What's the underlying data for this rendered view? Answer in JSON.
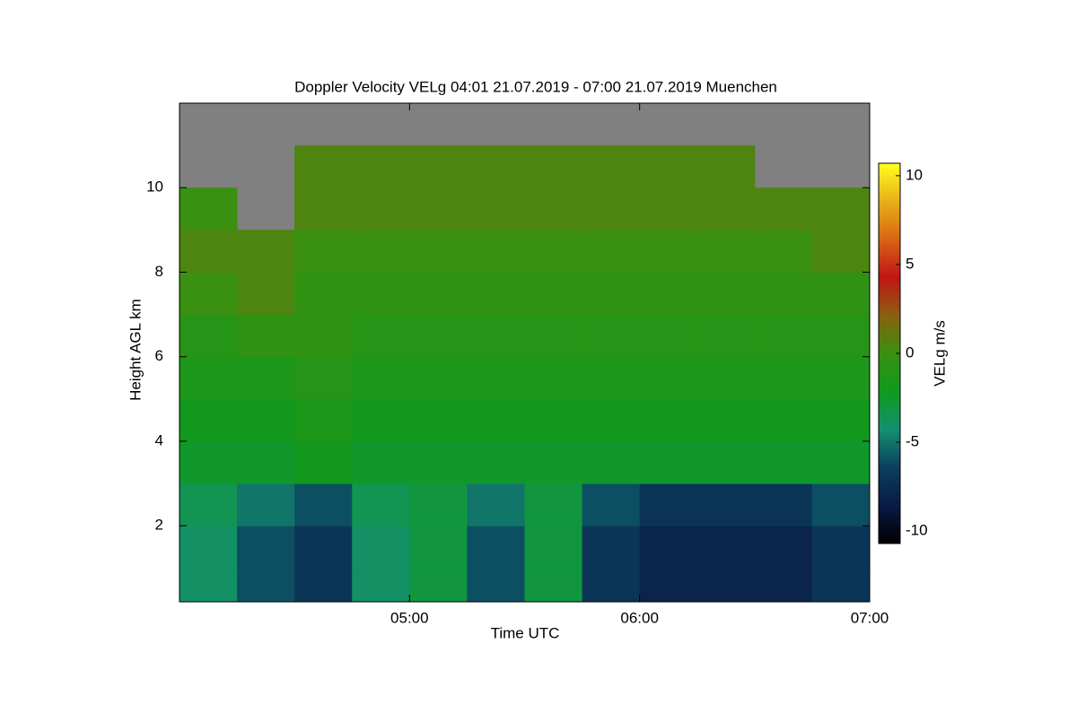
{
  "chart_data": {
    "type": "heatmap",
    "title": "Doppler Velocity VELg   04:01 21.07.2019 - 07:00 21.07.2019 Muenchen",
    "x_label": "Time UTC",
    "y_label": "Height AGL km",
    "colorbar_label": "VELg m/s",
    "x": [
      4.125,
      4.375,
      4.625,
      4.875,
      5.125,
      5.375,
      5.625,
      5.875,
      6.125,
      6.375,
      6.625,
      6.875
    ],
    "y": [
      0.5,
      1.5,
      2.5,
      3.5,
      4.5,
      5.5,
      6.5,
      7.5,
      8.5,
      9.5,
      10.5,
      11.5
    ],
    "z": [
      [
        -4,
        -6,
        -7,
        -4,
        -3,
        -6,
        -3,
        -7,
        -8,
        -8,
        -8,
        -7
      ],
      [
        -4,
        -6,
        -7,
        -4,
        -3,
        -6,
        -3,
        -7,
        -8,
        -8,
        -8,
        -7
      ],
      [
        -3.5,
        -5,
        -6,
        -3.5,
        -3,
        -5,
        -3,
        -6,
        -7,
        -7,
        -7,
        -6
      ],
      [
        -2.5,
        -2.5,
        -2,
        -2.5,
        -2.5,
        -2.5,
        -2.5,
        -2.5,
        -2.5,
        -2.5,
        -2.5,
        -2.5
      ],
      [
        -2,
        -2,
        -1.5,
        -2,
        -2,
        -2,
        -2,
        -2,
        -2,
        -2,
        -2,
        -2
      ],
      [
        -1.5,
        -1.5,
        -1,
        -1.5,
        -1.5,
        -1.5,
        -1.5,
        -1.5,
        -1.5,
        -1.5,
        -1.5,
        -1.5
      ],
      [
        -1,
        -0.5,
        -0.5,
        -1,
        -1,
        -1,
        -1,
        -1,
        -1,
        -1,
        -1,
        -1
      ],
      [
        0,
        0.5,
        -0.5,
        -0.5,
        -0.5,
        -0.5,
        -0.5,
        -0.5,
        -0.5,
        -0.5,
        -0.5,
        -0.5
      ],
      [
        0.5,
        0.5,
        0,
        0,
        0,
        0,
        0,
        0,
        0,
        0,
        0,
        0.5
      ],
      [
        0,
        null,
        0.5,
        0.5,
        0.5,
        0.5,
        0.5,
        0.5,
        0.5,
        0.5,
        0.5,
        0.5
      ],
      [
        null,
        null,
        0.5,
        0.5,
        0.5,
        0.5,
        0.5,
        0.5,
        0.5,
        0.5,
        null,
        null
      ],
      [
        null,
        null,
        null,
        null,
        null,
        null,
        null,
        null,
        null,
        null,
        null,
        null
      ]
    ],
    "xlim": [
      4,
      7
    ],
    "xticks": [
      {
        "value": 5,
        "label": "05:00"
      },
      {
        "value": 6,
        "label": "06:00"
      },
      {
        "value": 7,
        "label": "07:00"
      }
    ],
    "ylim": [
      0.2,
      12
    ],
    "yticks": [
      2,
      4,
      6,
      8,
      10
    ],
    "clim": [
      -10.7,
      10.7
    ],
    "cticks": [
      -10,
      -5,
      0,
      5,
      10
    ],
    "colormap": [
      "#000000",
      "#0a1a45",
      "#0b3f5e",
      "#149070",
      "#0f9a1e",
      "#3a9010",
      "#8a6010",
      "#c01515",
      "#d86515",
      "#e8b018",
      "#ffff20"
    ],
    "missing_color": "#808080"
  }
}
